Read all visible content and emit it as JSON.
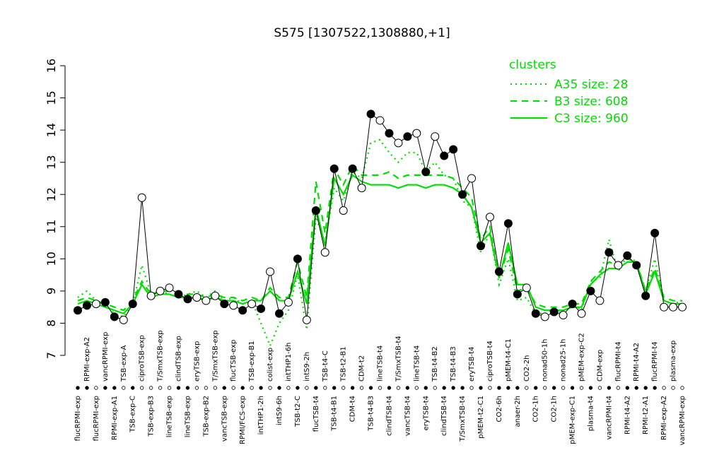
{
  "chart_data": {
    "type": "line",
    "title": "S575 [1307522,1308880,+1]",
    "categories": [
      "flucRPMI-exp",
      "RPMI-exp-A2",
      "flucRPMI-exp",
      "vancRPMI-exp",
      "RPMI-exp-A1",
      "TSB-exp-A",
      "TSB-exp-C",
      "ciproTSB-exp",
      "TSB-exp-B3",
      "T/SmxTSB-exp",
      "lineTSB-exp",
      "clindTSB-exp",
      "lineTSB-exp",
      "eryTSB-exp",
      "TSB-exp-B2",
      "T/SmxTSB-exp",
      "vancTSB-exp",
      "flucTSB-exp",
      "RPMI/FCS-exp",
      "TSB-exp-B1",
      "intTHP1-2h",
      "colist-exp",
      "intS9-6h",
      "intTHP1-6h",
      "TSB-t2-C",
      "intS9-2h",
      "flucTSB-t4",
      "TSB-t4-C",
      "TSB-t4-B1",
      "TSB-t2-B1",
      "CDM-t4",
      "CDM-t2",
      "TSB-t4-B3",
      "lineTSB-t4",
      "clindTSB-t4",
      "T/SmxTSB-t4",
      "vancTSB-t4",
      "lineTSB-t4",
      "eryTSB-t4",
      "TSB-t4-B2",
      "clindTSB-t4",
      "TSB-t4-B3",
      "T/SmxTSB-t4",
      "eryTSB-t4",
      "pMEM-t2-C1",
      "ciproTSB-t4",
      "CO2-6h",
      "pMEM-t4-C1",
      "anaer-2h",
      "CO2-2h",
      "CO2-1h",
      "nonad50-1h",
      "CO2-1h",
      "nonad25-1h",
      "pMEM-exp-C1",
      "pMEM-exp-C2",
      "plasma-t4",
      "CDM-exp",
      "vancRPMI-t4",
      "flucRPMI-t4",
      "RPMI-t4-A2",
      "RPMI-t4-A2",
      "RPMI-t2-A1",
      "flucRPMI-t4",
      "RPMI-exp-A2",
      "plasma-exp",
      "vancRPMI-exp"
    ],
    "values": [
      8.4,
      8.55,
      8.6,
      8.65,
      8.2,
      8.1,
      8.6,
      11.9,
      8.85,
      9.0,
      9.1,
      8.9,
      8.75,
      8.8,
      8.7,
      8.85,
      8.6,
      8.55,
      8.4,
      8.6,
      8.45,
      9.6,
      8.3,
      8.65,
      10.0,
      8.1,
      11.5,
      10.2,
      12.8,
      11.5,
      12.8,
      12.2,
      14.5,
      14.3,
      13.9,
      13.6,
      13.8,
      13.9,
      12.7,
      13.8,
      13.2,
      13.4,
      12.0,
      12.5,
      10.4,
      11.3,
      9.6,
      11.1,
      8.9,
      9.1,
      8.3,
      8.2,
      8.35,
      8.25,
      8.6,
      8.3,
      9.0,
      8.7,
      10.2,
      9.8,
      10.1,
      9.8,
      8.85,
      10.8,
      8.5,
      8.5,
      8.5
    ],
    "marker_colors": [
      "#000",
      "#000",
      "#fff",
      "#000",
      "#000",
      "#fff",
      "#000",
      "#fff",
      "#fff",
      "#fff",
      "#fff",
      "#000",
      "#000",
      "#fff",
      "#fff",
      "#fff",
      "#000",
      "#fff",
      "#000",
      "#fff",
      "#000",
      "#fff",
      "#000",
      "#fff",
      "#000",
      "#fff",
      "#000",
      "#fff",
      "#000",
      "#fff",
      "#000",
      "#fff",
      "#000",
      "#fff",
      "#000",
      "#fff",
      "#000",
      "#fff",
      "#000",
      "#fff",
      "#000",
      "#000",
      "#000",
      "#fff",
      "#000",
      "#fff",
      "#000",
      "#000",
      "#000",
      "#fff",
      "#000",
      "#fff",
      "#000",
      "#fff",
      "#000",
      "#fff",
      "#000",
      "#fff",
      "#000",
      "#fff",
      "#000",
      "#000",
      "#000",
      "#000",
      "#fff",
      "#fff",
      "#fff"
    ],
    "series": [
      {
        "name": "A35 size: 28",
        "color": "#00dd00",
        "dash": "2,5",
        "values": [
          8.8,
          9.0,
          8.7,
          8.6,
          8.3,
          8.2,
          8.6,
          9.8,
          8.9,
          9.0,
          8.9,
          8.8,
          8.9,
          9.0,
          8.8,
          9.0,
          8.7,
          8.8,
          8.6,
          8.7,
          8.0,
          7.3,
          8.0,
          8.4,
          9.5,
          7.8,
          11.3,
          10.5,
          12.2,
          11.8,
          12.7,
          12.5,
          13.6,
          13.7,
          13.3,
          13.0,
          13.3,
          13.3,
          12.7,
          13.0,
          12.6,
          12.5,
          11.8,
          11.6,
          10.2,
          10.8,
          9.2,
          10.0,
          8.7,
          8.8,
          8.3,
          8.3,
          8.4,
          8.3,
          8.6,
          8.4,
          9.3,
          9.4,
          10.6,
          9.6,
          10.1,
          9.9,
          9.0,
          10.0,
          8.7,
          8.6,
          8.7
        ]
      },
      {
        "name": "B3 size: 608",
        "color": "#00dd00",
        "dash": "9,7",
        "values": [
          8.7,
          8.8,
          8.7,
          8.6,
          8.5,
          8.4,
          8.7,
          9.3,
          8.9,
          9.0,
          9.0,
          8.9,
          8.9,
          8.9,
          8.8,
          8.9,
          8.8,
          8.8,
          8.7,
          8.8,
          8.7,
          9.1,
          8.8,
          8.8,
          9.9,
          8.8,
          12.4,
          10.8,
          12.8,
          12.3,
          12.9,
          12.6,
          12.6,
          12.6,
          12.7,
          12.5,
          12.6,
          12.6,
          12.6,
          12.6,
          12.6,
          12.5,
          12.2,
          11.9,
          10.6,
          11.0,
          9.4,
          10.3,
          9.0,
          9.1,
          8.6,
          8.5,
          8.5,
          8.5,
          8.6,
          8.6,
          9.3,
          9.6,
          9.9,
          9.8,
          10.0,
          9.9,
          9.0,
          9.7,
          8.8,
          8.7,
          8.7
        ]
      },
      {
        "name": "C3 size: 960",
        "color": "#00dd00",
        "dash": "",
        "values": [
          8.6,
          8.7,
          8.6,
          8.5,
          8.4,
          8.3,
          8.6,
          9.2,
          8.8,
          8.9,
          8.9,
          8.8,
          8.8,
          8.8,
          8.7,
          8.8,
          8.7,
          8.7,
          8.6,
          8.7,
          8.7,
          9.0,
          8.7,
          8.7,
          9.6,
          8.6,
          11.6,
          10.4,
          12.5,
          12.0,
          12.6,
          12.4,
          12.3,
          12.3,
          12.3,
          12.2,
          12.3,
          12.3,
          12.2,
          12.3,
          12.3,
          12.2,
          12.0,
          11.6,
          10.5,
          10.8,
          9.4,
          10.5,
          9.2,
          9.2,
          8.5,
          8.4,
          8.4,
          8.4,
          8.5,
          8.5,
          9.2,
          9.5,
          9.7,
          9.7,
          9.9,
          9.9,
          8.9,
          9.6,
          8.7,
          8.6,
          8.6
        ]
      }
    ],
    "legend_title": "clusters",
    "legend_color": "#00dd00",
    "legend_position": "top-right",
    "ylim": [
      7,
      16
    ],
    "yticks": [
      7,
      8,
      9,
      10,
      11,
      12,
      13,
      14,
      15,
      16
    ]
  }
}
